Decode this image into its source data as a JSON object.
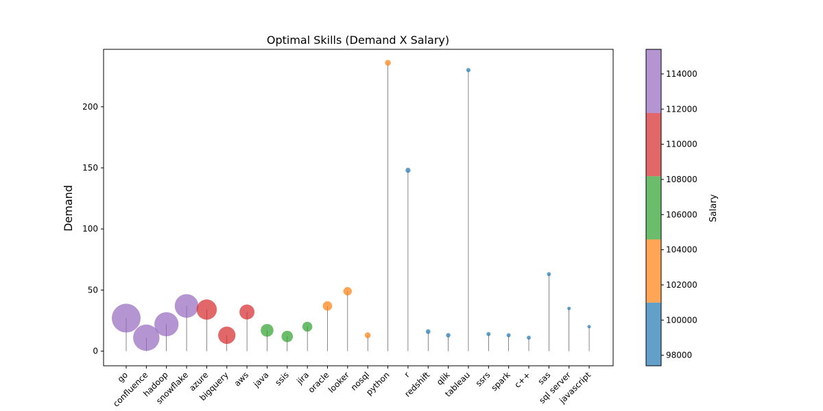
{
  "chart_data": {
    "type": "scatter",
    "title": "Optimal Skills (Demand X Salary)",
    "xlabel": "",
    "ylabel": "Demand",
    "ylim": [
      -12,
      247
    ],
    "y_ticks": [
      0,
      50,
      100,
      150,
      200
    ],
    "categories": [
      "go",
      "confluence",
      "hadoop",
      "snowflake",
      "azure",
      "bigquery",
      "aws",
      "java",
      "ssis",
      "jira",
      "oracle",
      "looker",
      "nosql",
      "python",
      "r",
      "redshift",
      "qlik",
      "tableau",
      "ssrs",
      "spark",
      "c++",
      "sas",
      "sql server",
      "javascript"
    ],
    "demand": [
      27,
      11,
      22,
      37,
      34,
      13,
      32,
      17,
      12,
      20,
      37,
      49,
      13,
      236,
      148,
      16,
      13,
      230,
      14,
      13,
      11,
      63,
      35,
      20
    ],
    "salary": [
      115320,
      114210,
      113193,
      112948,
      111225,
      109654,
      108317,
      106906,
      106000,
      104918,
      104534,
      103795,
      101414,
      101397,
      100499,
      99936,
      99631,
      99288,
      99171,
      99077,
      98958,
      98902,
      97786,
      97237
    ],
    "colorbar": {
      "label": "Salary",
      "range": [
        97400,
        115400
      ],
      "ticks": [
        98000,
        100000,
        102000,
        104000,
        106000,
        108000,
        110000,
        112000,
        114000
      ],
      "bins": [
        {
          "min": 97400,
          "max": 100994,
          "color": "#1f77b4"
        },
        {
          "min": 100994,
          "max": 104588,
          "color": "#ff7f0e"
        },
        {
          "min": 104588,
          "max": 108182,
          "color": "#2ca02c"
        },
        {
          "min": 108182,
          "max": 111776,
          "color": "#d62728"
        },
        {
          "min": 111776,
          "max": 115400,
          "color": "#9467bd"
        }
      ]
    },
    "grid": false,
    "legend": "none"
  }
}
